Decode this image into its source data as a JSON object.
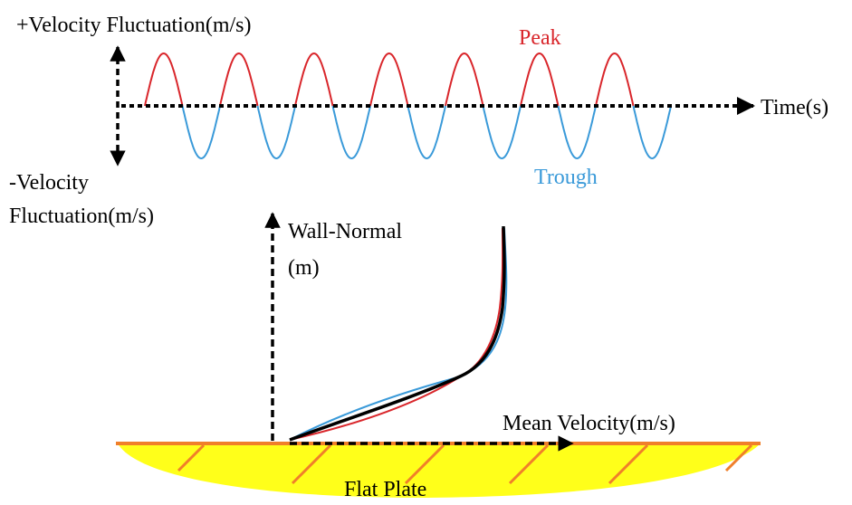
{
  "labels": {
    "pos_velocity_fluctuation": "+Velocity Fluctuation(m/s)",
    "neg_velocity_line1": "-Velocity",
    "neg_velocity_line2": "Fluctuation(m/s)",
    "time": "Time(s)",
    "peak": "Peak",
    "trough": "Trough",
    "wall_normal_line1": "Wall-Normal",
    "wall_normal_line2": "(m)",
    "mean_velocity": "Mean Velocity(m/s)",
    "flat_plate": "Flat Plate"
  },
  "colors": {
    "peak": "#d9262b",
    "trough": "#3a9ad9",
    "mean_profile": "#000000",
    "plate_fill": "#ffff1a",
    "plate_edge": "#f07f2a",
    "axis": "#000000"
  },
  "signal": {
    "peak_count": 7,
    "trough_count": 7
  }
}
